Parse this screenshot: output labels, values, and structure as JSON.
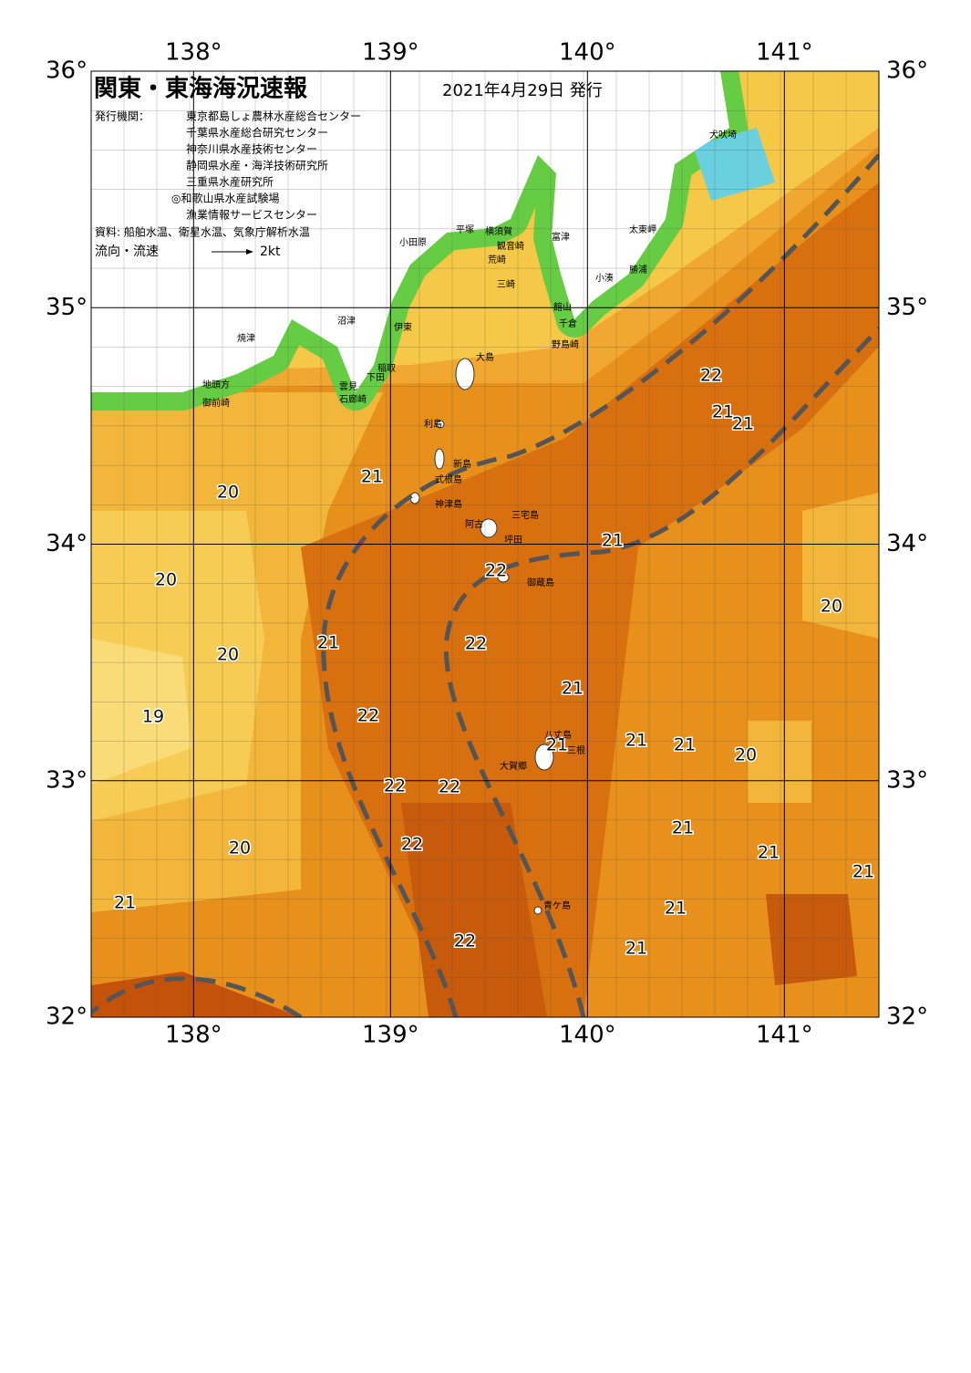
{
  "header": {
    "title": "関東・東海海況速報",
    "date": "2021年4月29日 発行",
    "agency_label": "発行機関：",
    "agencies": [
      "東京都島しょ農林水産総合センター",
      "千葉県水産総合研究センター",
      "神奈川県水産技術センター",
      "静岡県水産・海洋技術研究所",
      "三重県水産研究所",
      "◎和歌山県水産試験場",
      "漁業情報サービスセンター"
    ],
    "source": "資料: 船舶水温、衛星水温、気象庁解析水温",
    "legend_label": "流向・流速",
    "legend_speed": "2kt"
  },
  "axes": {
    "lon_ticks": [
      {
        "value": 138,
        "label": "138°"
      },
      {
        "value": 139,
        "label": "139°"
      },
      {
        "value": 140,
        "label": "140°"
      },
      {
        "value": 141,
        "label": "141°"
      }
    ],
    "lat_ticks": [
      {
        "value": 36,
        "label": "36°"
      },
      {
        "value": 35,
        "label": "35°"
      },
      {
        "value": 34,
        "label": "34°"
      },
      {
        "value": 33,
        "label": "33°"
      },
      {
        "value": 32,
        "label": "32°"
      }
    ],
    "lonlim": [
      137.48,
      141.48
    ],
    "latlim": [
      32,
      36
    ]
  },
  "temperature_labels": [
    20,
    21,
    20,
    20,
    21,
    19,
    22,
    22,
    22,
    22,
    20,
    21,
    22,
    22,
    22,
    21,
    21,
    21,
    21,
    20,
    21,
    21,
    21,
    21,
    21,
    22,
    21,
    21,
    21,
    20
  ],
  "place_names": [
    "犬吠埼",
    "太東岬",
    "勝浦",
    "小湊",
    "富津",
    "館山",
    "千倉",
    "野島崎",
    "横須賀",
    "観音崎",
    "荒崎",
    "三崎",
    "平塚",
    "小田原",
    "沼津",
    "伊東",
    "焼津",
    "大島",
    "稲取",
    "下田",
    "雲見",
    "石廊崎",
    "地頭方",
    "御前崎",
    "利島",
    "新島",
    "式根島",
    "神津島",
    "三宅島",
    "阿古",
    "坪田",
    "御蔵島",
    "八丈島",
    "三根",
    "大賀郷",
    "青ケ島"
  ]
}
